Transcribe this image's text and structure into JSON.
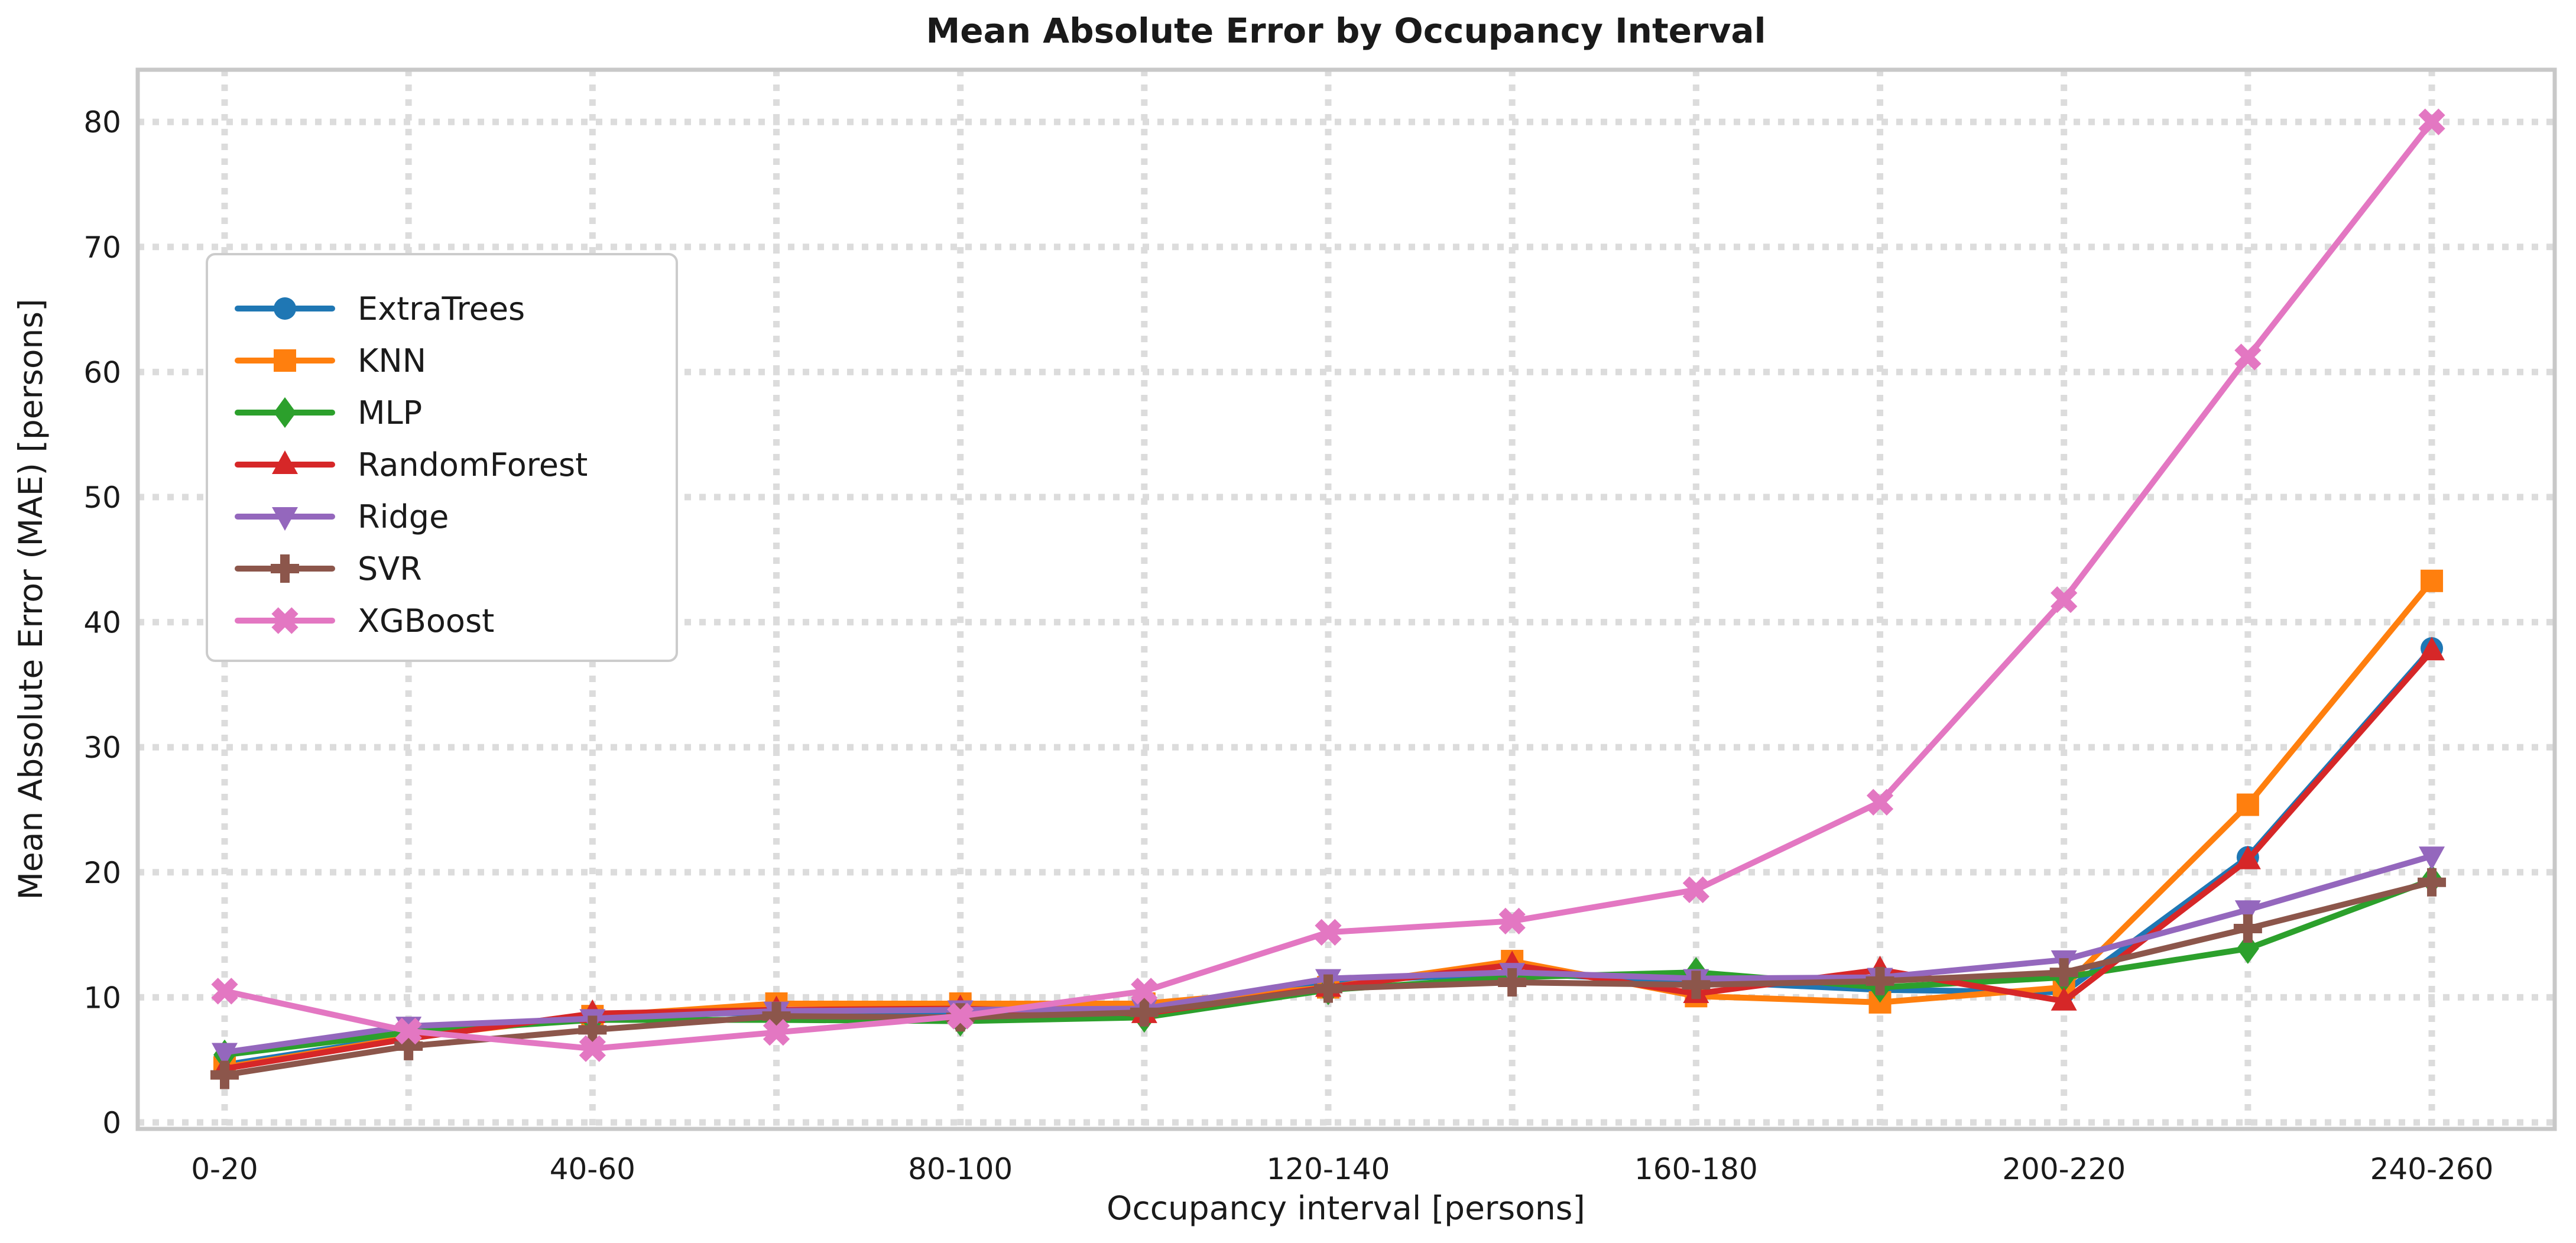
{
  "title": "Mean Absolute Error by Occupancy Interval",
  "chart_data": {
    "type": "line",
    "title": "Mean Absolute Error by Occupancy Interval",
    "xlabel": "Occupancy interval [persons]",
    "ylabel": "Mean Absolute Error (MAE) [persons]",
    "categories": [
      "0-20",
      "20-40",
      "40-60",
      "60-80",
      "80-100",
      "100-120",
      "120-140",
      "140-160",
      "160-180",
      "180-200",
      "200-220",
      "220-240",
      "240-260"
    ],
    "xtick_labels": [
      "0-20",
      "40-60",
      "80-100",
      "120-140",
      "160-180",
      "200-220",
      "240-260"
    ],
    "xtick_indices": [
      0,
      2,
      4,
      6,
      8,
      10,
      12
    ],
    "ytick_values": [
      0,
      10,
      20,
      30,
      40,
      50,
      60,
      70,
      80
    ],
    "ylim": [
      -0.5,
      84.2
    ],
    "grid": "dotted-both-axes",
    "legend_position": "upper-left",
    "grid_color": "#dcdcdc",
    "spine_color": "#c8c8c8",
    "text_color": "#1a1a1a",
    "series": [
      {
        "name": "ExtraTrees",
        "color": "#1f77b4",
        "marker": "circle",
        "values": [
          4.6,
          6.9,
          8.5,
          8.8,
          8.8,
          9.2,
          11.3,
          11.9,
          11.3,
          10.6,
          10.4,
          21.2,
          37.9
        ]
      },
      {
        "name": "KNN",
        "color": "#ff7f0e",
        "marker": "square",
        "values": [
          4.4,
          6.8,
          8.5,
          9.5,
          9.5,
          9.5,
          10.8,
          12.9,
          10.1,
          9.6,
          10.8,
          25.4,
          43.3
        ]
      },
      {
        "name": "MLP",
        "color": "#2ca02c",
        "marker": "diamond",
        "values": [
          5.4,
          7.2,
          8.2,
          8.2,
          8.1,
          8.4,
          10.6,
          11.6,
          12.0,
          10.8,
          11.6,
          13.9,
          19.4
        ]
      },
      {
        "name": "RandomForest",
        "color": "#d62728",
        "marker": "triangle-up",
        "values": [
          4.3,
          6.7,
          8.7,
          9.0,
          9.1,
          8.7,
          10.8,
          12.6,
          10.3,
          12.2,
          9.7,
          21.0,
          37.7
        ]
      },
      {
        "name": "Ridge",
        "color": "#9467bd",
        "marker": "triangle-down",
        "values": [
          5.6,
          7.7,
          8.3,
          8.9,
          9.0,
          9.1,
          11.5,
          12.0,
          11.5,
          11.6,
          13.0,
          17.0,
          21.3
        ]
      },
      {
        "name": "SVR",
        "color": "#8c564b",
        "marker": "plus",
        "values": [
          3.8,
          6.1,
          7.4,
          8.5,
          8.4,
          8.8,
          10.7,
          11.2,
          11.0,
          11.3,
          12.0,
          15.5,
          19.2
        ]
      },
      {
        "name": "XGBoost",
        "color": "#e377c2",
        "marker": "x",
        "values": [
          10.5,
          7.3,
          5.9,
          7.2,
          8.5,
          10.5,
          15.2,
          16.1,
          18.6,
          25.6,
          41.8,
          61.2,
          80.0
        ]
      }
    ]
  }
}
